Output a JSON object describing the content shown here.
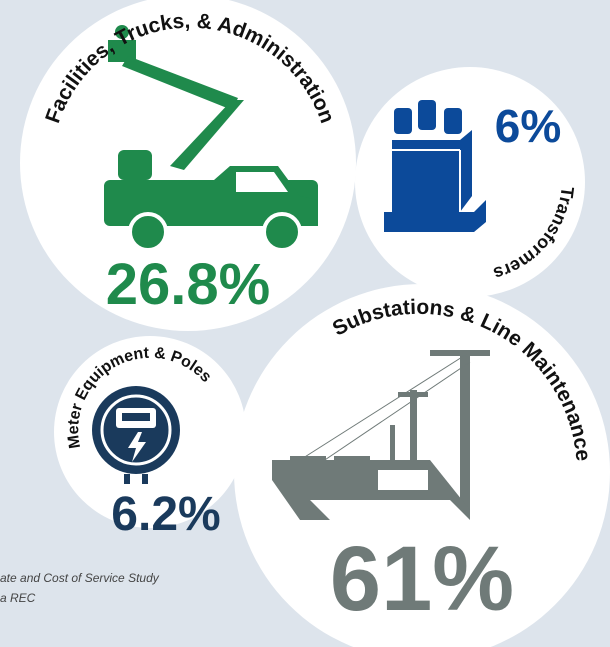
{
  "segments": [
    {
      "label": "Facilities, Trucks, & Administration",
      "value": "26.8%"
    },
    {
      "label": "Transformers",
      "value": "6%"
    },
    {
      "label": "Substations & Line Maintenance",
      "value": "61%"
    },
    {
      "label": "Meter Equipment & Poles",
      "value": "6.2%"
    }
  ],
  "footnote": [
    "ate and Cost of Service Study",
    "a REC"
  ]
}
